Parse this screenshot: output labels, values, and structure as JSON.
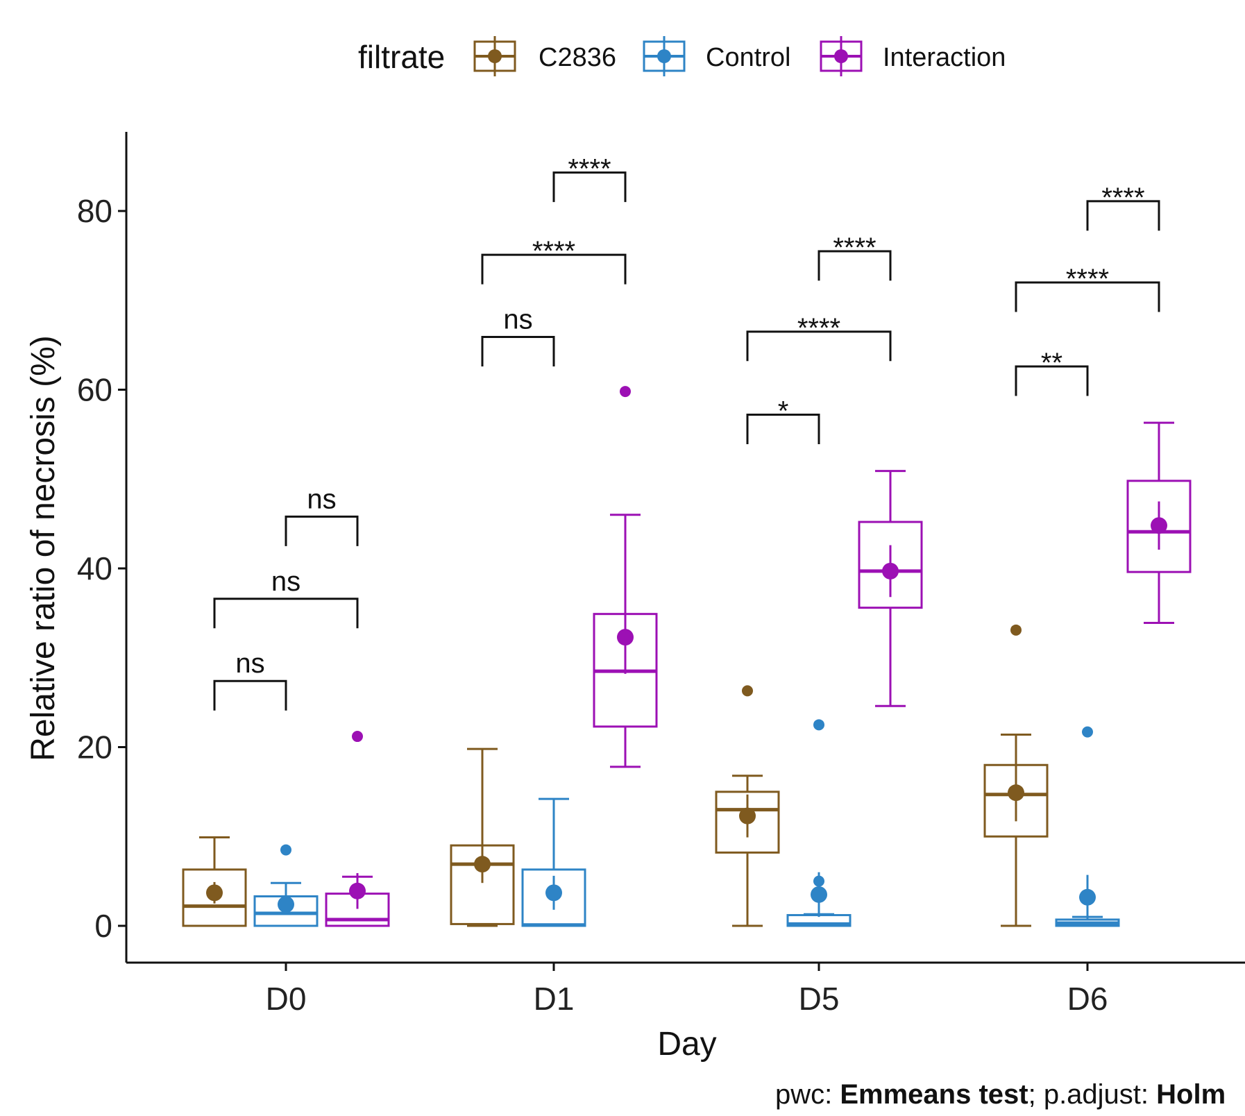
{
  "legend": {
    "title": "filtrate",
    "items": [
      {
        "label": "C2836",
        "color": "#7F5A1F"
      },
      {
        "label": "Control",
        "color": "#2E84C6"
      },
      {
        "label": "Interaction",
        "color": "#9C10B4"
      }
    ]
  },
  "axes": {
    "xlabel": "Day",
    "ylabel": "Relative ratio of necrosis (%)",
    "yticks": [
      "0",
      "20",
      "40",
      "60",
      "80"
    ]
  },
  "caption": {
    "pwc_prefix": "pwc: ",
    "pwc_method": "Emmeans test",
    "adjust_prefix": "; p.adjust: ",
    "adjust_method": "Holm"
  },
  "chart_data": {
    "type": "boxplot",
    "categories": [
      "D0",
      "D1",
      "D5",
      "D6"
    ],
    "ylim": [
      -4,
      88
    ],
    "ylabel": "Relative ratio of necrosis (%)",
    "xlabel": "Day",
    "grid": false,
    "legend_position": "top",
    "series": [
      {
        "name": "C2836",
        "color": "#7F5A1F",
        "boxes": [
          {
            "category": "D0",
            "whisker_low": 0,
            "q1": 0,
            "median": 2.2,
            "q3": 6.3,
            "whisker_high": 9.9,
            "mean": 3.7,
            "mean_err": 1.2,
            "outliers": []
          },
          {
            "category": "D1",
            "whisker_low": 0,
            "q1": 0.2,
            "median": 6.9,
            "q3": 9.0,
            "whisker_high": 19.8,
            "mean": 6.9,
            "mean_err": 2.1,
            "outliers": []
          },
          {
            "category": "D5",
            "whisker_low": 0,
            "q1": 8.2,
            "median": 13.0,
            "q3": 15.0,
            "whisker_high": 16.8,
            "mean": 12.3,
            "mean_err": 2.4,
            "outliers": [
              26.3
            ]
          },
          {
            "category": "D6",
            "whisker_low": 0,
            "q1": 10.0,
            "median": 14.7,
            "q3": 18.0,
            "whisker_high": 21.4,
            "mean": 14.9,
            "mean_err": 3.2,
            "outliers": [
              33.1
            ]
          }
        ]
      },
      {
        "name": "Control",
        "color": "#2E84C6",
        "boxes": [
          {
            "category": "D0",
            "whisker_low": 0,
            "q1": 0,
            "median": 1.4,
            "q3": 3.3,
            "whisker_high": 4.8,
            "mean": 2.4,
            "mean_err": 1.1,
            "outliers": [
              8.5
            ]
          },
          {
            "category": "D1",
            "whisker_low": 0,
            "q1": 0,
            "median": 0.1,
            "q3": 6.3,
            "whisker_high": 14.2,
            "mean": 3.7,
            "mean_err": 1.9,
            "outliers": []
          },
          {
            "category": "D5",
            "whisker_low": 0,
            "q1": 0,
            "median": 0.2,
            "q3": 1.2,
            "whisker_high": 1.3,
            "mean": 3.5,
            "mean_err": 2.5,
            "outliers": [
              5.0,
              22.5
            ]
          },
          {
            "category": "D6",
            "whisker_low": 0,
            "q1": 0,
            "median": 0.3,
            "q3": 0.7,
            "whisker_high": 1.0,
            "mean": 3.2,
            "mean_err": 2.5,
            "outliers": [
              21.7
            ]
          }
        ]
      },
      {
        "name": "Interaction",
        "color": "#9C10B4",
        "boxes": [
          {
            "category": "D0",
            "whisker_low": 0,
            "q1": 0,
            "median": 0.7,
            "q3": 3.6,
            "whisker_high": 5.5,
            "mean": 3.9,
            "mean_err": 2.0,
            "outliers": [
              21.2
            ]
          },
          {
            "category": "D1",
            "whisker_low": 17.8,
            "q1": 22.3,
            "median": 28.5,
            "q3": 34.9,
            "whisker_high": 46.0,
            "mean": 32.3,
            "mean_err": 4.1,
            "outliers": [
              59.8
            ]
          },
          {
            "category": "D5",
            "whisker_low": 24.6,
            "q1": 35.6,
            "median": 39.7,
            "q3": 45.2,
            "whisker_high": 50.9,
            "mean": 39.7,
            "mean_err": 2.9,
            "outliers": []
          },
          {
            "category": "D6",
            "whisker_low": 33.9,
            "q1": 39.6,
            "median": 44.1,
            "q3": 49.8,
            "whisker_high": 56.3,
            "mean": 44.8,
            "mean_err": 2.7,
            "outliers": []
          }
        ]
      }
    ],
    "comparisons": [
      {
        "category": "D0",
        "from": "C2836",
        "to": "Control",
        "label": "ns",
        "y": 27.4
      },
      {
        "category": "D0",
        "from": "C2836",
        "to": "Interaction",
        "label": "ns",
        "y": 36.6
      },
      {
        "category": "D0",
        "from": "Control",
        "to": "Interaction",
        "label": "ns",
        "y": 45.8
      },
      {
        "category": "D1",
        "from": "C2836",
        "to": "Control",
        "label": "ns",
        "y": 65.9
      },
      {
        "category": "D1",
        "from": "C2836",
        "to": "Interaction",
        "label": "****",
        "y": 75.1
      },
      {
        "category": "D1",
        "from": "Control",
        "to": "Interaction",
        "label": "****",
        "y": 84.3
      },
      {
        "category": "D5",
        "from": "C2836",
        "to": "Control",
        "label": "*",
        "y": 57.2
      },
      {
        "category": "D5",
        "from": "C2836",
        "to": "Interaction",
        "label": "****",
        "y": 66.5
      },
      {
        "category": "D5",
        "from": "Control",
        "to": "Interaction",
        "label": "****",
        "y": 75.5
      },
      {
        "category": "D6",
        "from": "C2836",
        "to": "Control",
        "label": "**",
        "y": 62.6
      },
      {
        "category": "D6",
        "from": "C2836",
        "to": "Interaction",
        "label": "****",
        "y": 72.0
      },
      {
        "category": "D6",
        "from": "Control",
        "to": "Interaction",
        "label": "****",
        "y": 81.1
      }
    ]
  }
}
